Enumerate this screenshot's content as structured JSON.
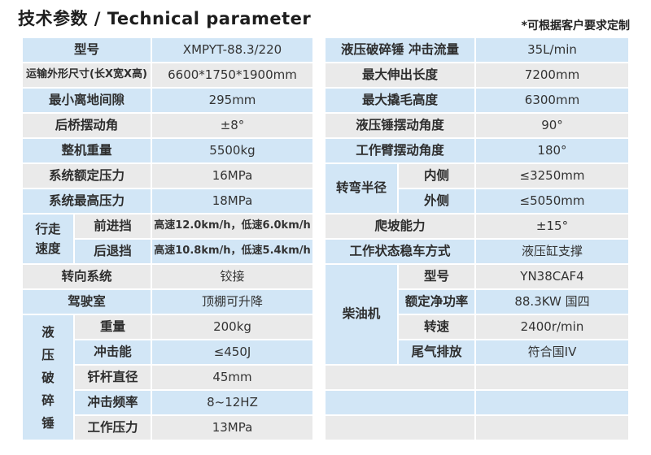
{
  "header": {
    "title": "技术参数 / Technical parameter",
    "note": "*可根据客户要求定制"
  },
  "colors": {
    "row_blue": "#d2e6f6",
    "row_gray": "#eaeaea",
    "text": "#333333"
  },
  "left_table": {
    "rows": [
      {
        "label": "型号",
        "value": "XMPYT-88.3/220"
      },
      {
        "label": "运输外形尺寸(长X宽X高)",
        "value": "6600*1750*1900mm",
        "small_label": true
      },
      {
        "label": "最小离地间隙",
        "value": "295mm"
      },
      {
        "label": "后桥摆动角",
        "value": "±8°"
      },
      {
        "label": "整机重量",
        "value": "5500kg"
      },
      {
        "label": "系统额定压力",
        "value": "16MPa"
      },
      {
        "label": "系统最高压力",
        "value": "18MPa"
      },
      {
        "group": "行走速度",
        "group_rowspan": 2,
        "group_wrap": true,
        "sublabel": "前进挡",
        "value": "高速12.0km/h，低速6.0km/h",
        "small_value": true
      },
      {
        "sublabel": "后退挡",
        "value": "高速10.8km/h，低速5.4km/h",
        "small_value": true
      },
      {
        "label": "转向系统",
        "value": "铰接"
      },
      {
        "label": "驾驶室",
        "value": "顶棚可升降"
      },
      {
        "group": "液压破碎锤",
        "group_rowspan": 5,
        "vertical": true,
        "sublabel": "重量",
        "value": "200kg"
      },
      {
        "sublabel": "冲击能",
        "value": "≤450J"
      },
      {
        "sublabel": "钎杆直径",
        "value": "45mm"
      },
      {
        "sublabel": "冲击频率",
        "value": "8~12HZ"
      },
      {
        "sublabel": "工作压力",
        "value": "13MPa"
      }
    ]
  },
  "right_table": {
    "rows": [
      {
        "label": "液压破碎锤 冲击流量",
        "value": "35L/min"
      },
      {
        "label": "最大伸出长度",
        "value": "7200mm"
      },
      {
        "label": "最大撬毛高度",
        "value": "6300mm"
      },
      {
        "label": "液压锤摆动角度",
        "value": "90°"
      },
      {
        "label": "工作臂摆动角度",
        "value": "180°"
      },
      {
        "group": "转弯半径",
        "group_rowspan": 2,
        "sublabel": "内侧",
        "value": "≤3250mm"
      },
      {
        "sublabel": "外侧",
        "value": "≤5050mm"
      },
      {
        "label": "爬坡能力",
        "value": "±15°"
      },
      {
        "label": "工作状态稳车方式",
        "value": "液压缸支撑"
      },
      {
        "group": "柴油机",
        "group_rowspan": 4,
        "sublabel": "型号",
        "value": "YN38CAF4"
      },
      {
        "sublabel": "额定净功率",
        "value": "88.3KW 国四"
      },
      {
        "sublabel": "转速",
        "value": "2400r/min"
      },
      {
        "sublabel": "尾气排放",
        "value": "符合国IV"
      },
      {
        "label": "",
        "value": ""
      },
      {
        "label": "",
        "value": ""
      },
      {
        "label": "",
        "value": ""
      }
    ]
  }
}
